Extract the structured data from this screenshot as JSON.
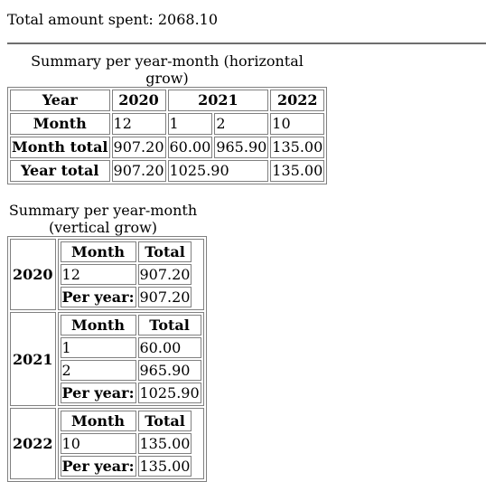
{
  "summary": {
    "total_label": "Total amount spent:",
    "total_value": "2068.10"
  },
  "horizontal": {
    "caption": "Summary per year-month (horizontal grow)",
    "row_labels": {
      "year": "Year",
      "month": "Month",
      "month_total": "Month total",
      "year_total": "Year total"
    },
    "years": [
      "2020",
      "2021",
      "2022"
    ],
    "months": [
      "12",
      "1",
      "2",
      "10"
    ],
    "month_totals": [
      "907.20",
      "60.00",
      "965.90",
      "135.00"
    ],
    "year_totals": [
      "907.20",
      "1025.90",
      "135.00"
    ]
  },
  "vertical": {
    "caption": "Summary per year-month (vertical grow)",
    "col_month": "Month",
    "col_total": "Total",
    "per_year_label": "Per year:",
    "groups": [
      {
        "year": "2020",
        "rows": [
          {
            "month": "12",
            "total": "907.20"
          }
        ],
        "per_year": "907.20"
      },
      {
        "year": "2021",
        "rows": [
          {
            "month": "1",
            "total": "60.00"
          },
          {
            "month": "2",
            "total": "965.90"
          }
        ],
        "per_year": "1025.90"
      },
      {
        "year": "2022",
        "rows": [
          {
            "month": "10",
            "total": "135.00"
          }
        ],
        "per_year": "135.00"
      }
    ]
  }
}
